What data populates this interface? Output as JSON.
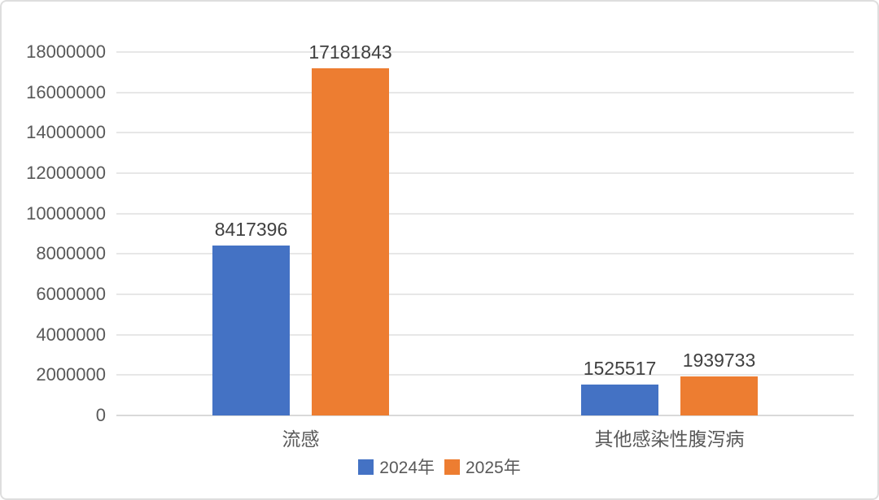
{
  "chart_data": {
    "type": "bar",
    "categories": [
      "流感",
      "其他感染性腹泻病"
    ],
    "series": [
      {
        "name": "2024年",
        "color": "#4472C4",
        "values": [
          8417396,
          1525517
        ]
      },
      {
        "name": "2025年",
        "color": "#ED7D31",
        "values": [
          17181843,
          1939733
        ]
      }
    ],
    "data_labels": [
      [
        "8417396",
        "1525517"
      ],
      [
        "17181843",
        "1939733"
      ]
    ],
    "title": "",
    "xlabel": "",
    "ylabel": "",
    "ylim": [
      0,
      18000000
    ],
    "ytick_step": 2000000,
    "ytick_labels": [
      "18000000",
      "16000000",
      "14000000",
      "12000000",
      "10000000",
      "8000000",
      "6000000",
      "4000000",
      "2000000",
      "0"
    ],
    "grid": true,
    "legend_position": "bottom"
  },
  "palette": {
    "background": "#FFFFFF",
    "border": "#DEDEDE",
    "gridline": "#E7E7E7",
    "axis_line": "#D9D9D9",
    "axis_text": "#595959",
    "data_label_text": "#404040",
    "legend_text": "#595959"
  }
}
